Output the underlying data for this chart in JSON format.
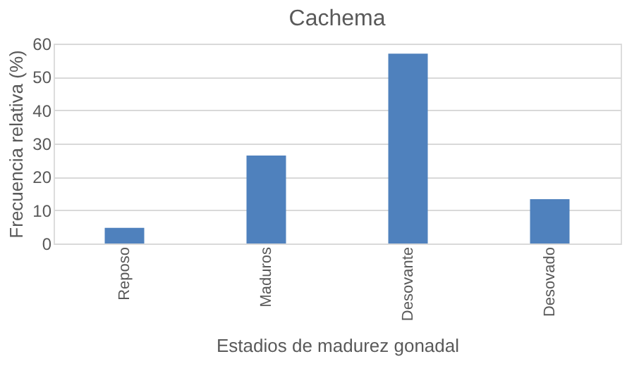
{
  "chart_data": {
    "type": "bar",
    "title": "Cachema",
    "xlabel": "Estadios de madurez gonadal",
    "ylabel": "Frecuencia relativa (%)",
    "categories": [
      "Reposo",
      "Maduros",
      "Desovante",
      "Desovado"
    ],
    "values": [
      4.7,
      26.4,
      57,
      13.3
    ],
    "color": "#4f81bd",
    "ylim": [
      0,
      60
    ],
    "yticks": [
      0,
      10,
      20,
      30,
      40,
      50,
      60
    ],
    "grid": "y"
  }
}
